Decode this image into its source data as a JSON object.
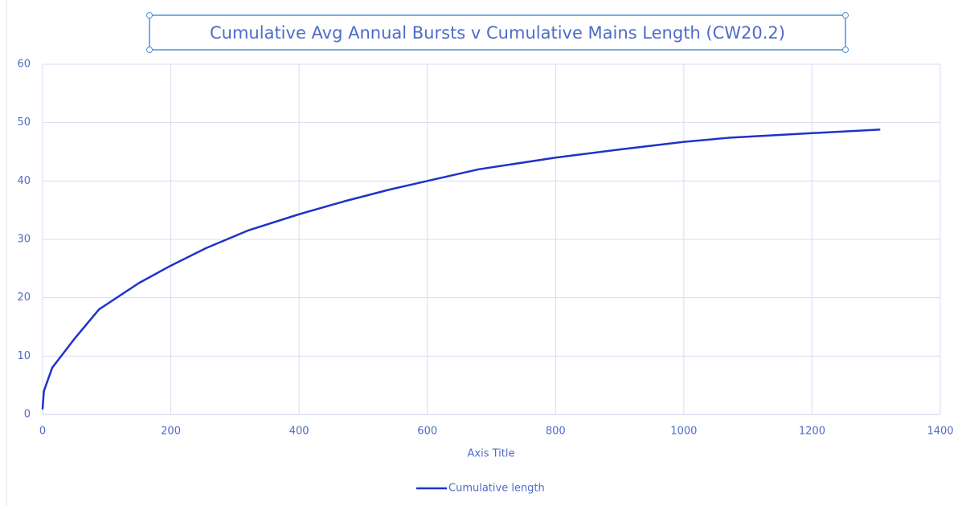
{
  "chart_data": {
    "type": "line",
    "title": "Cumulative Avg Annual Bursts v Cumulative Mains Length (CW20.2)",
    "x_label": "Axis Title",
    "x": [
      0,
      2,
      15,
      50,
      88,
      150,
      200,
      255,
      320,
      400,
      470,
      540,
      600,
      680,
      800,
      900,
      1000,
      1070,
      1200,
      1305
    ],
    "series": [
      {
        "name": "Cumulative length",
        "color": "#1f32c8",
        "values": [
          1,
          4,
          8,
          13,
          18,
          22.5,
          25.5,
          28.5,
          31.5,
          34.3,
          36.5,
          38.5,
          40,
          42,
          44,
          45.4,
          46.7,
          47.4,
          48.2,
          48.8
        ]
      }
    ],
    "xlim": [
      0,
      1400
    ],
    "xticks": [
      0,
      200,
      400,
      600,
      800,
      1000,
      1200,
      1400
    ],
    "ylim": [
      0,
      60
    ],
    "yticks": [
      0,
      10,
      20,
      30,
      40,
      50,
      60
    ],
    "grid": true,
    "legend": "bottom"
  }
}
